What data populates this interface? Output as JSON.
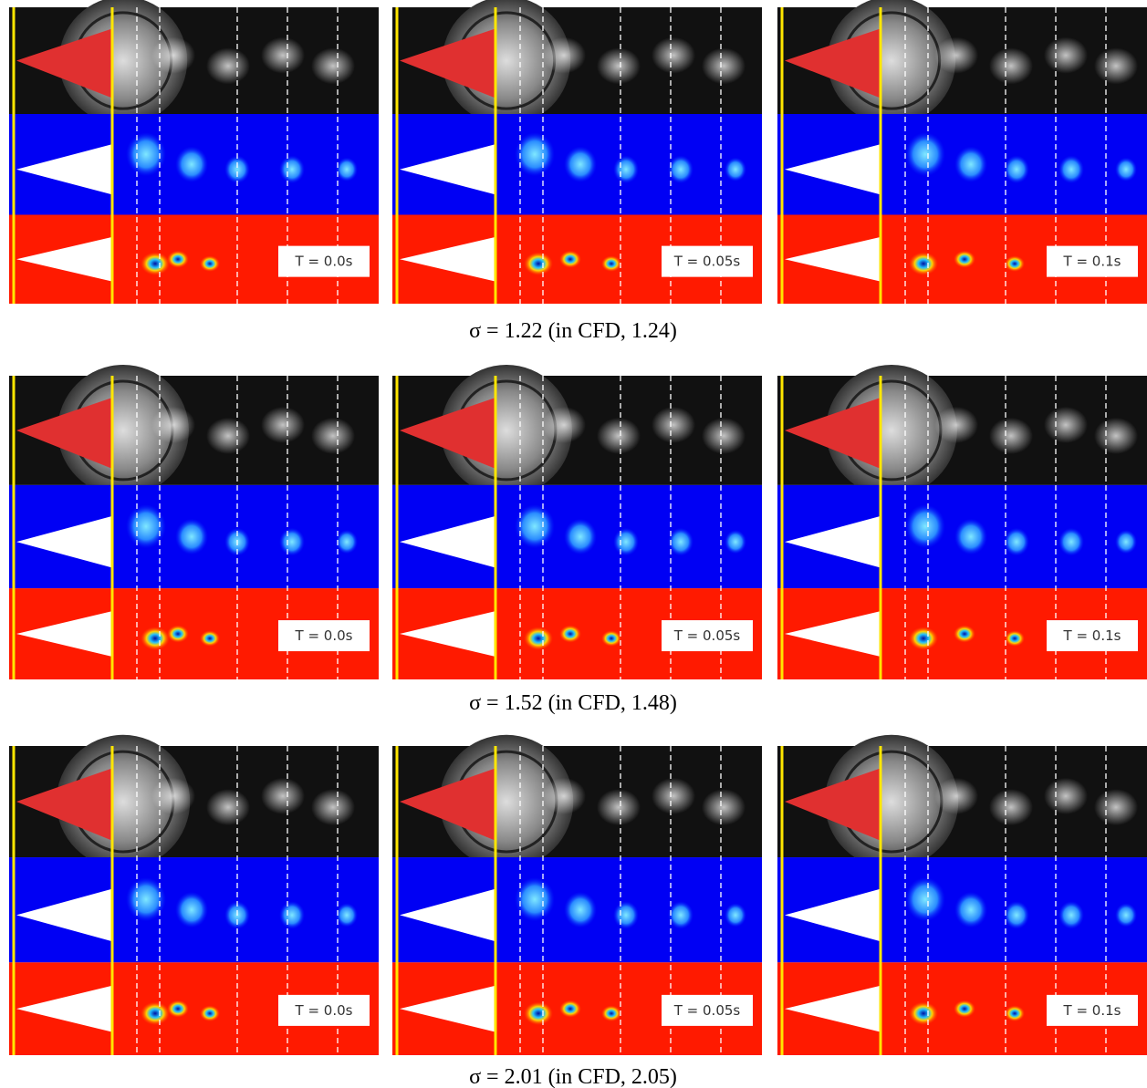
{
  "figure": {
    "groups": [
      {
        "caption": "σ = 1.22  (in CFD, 1.24)",
        "panels": [
          {
            "time": "T = 0.0s"
          },
          {
            "time": "T = 0.05s"
          },
          {
            "time": "T = 0.1s"
          }
        ]
      },
      {
        "caption": "σ = 1.52  (in CFD, 1.48)",
        "panels": [
          {
            "time": "T = 0.0s"
          },
          {
            "time": "T = 0.05s"
          },
          {
            "time": "T = 0.1s"
          }
        ]
      },
      {
        "caption": "σ = 2.01  (in CFD, 2.05)",
        "panels": [
          {
            "time": "T = 0.0s"
          },
          {
            "time": "T = 0.05s"
          },
          {
            "time": "T = 0.1s"
          }
        ]
      }
    ]
  }
}
